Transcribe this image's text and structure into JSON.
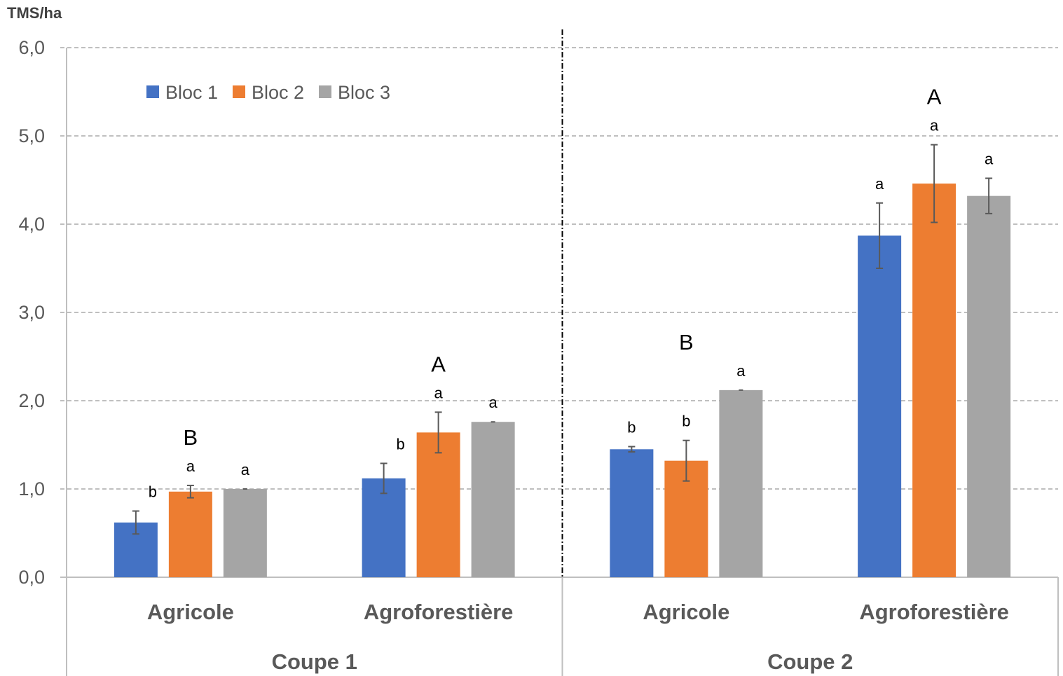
{
  "chart_data": {
    "type": "bar",
    "ylabel": "TMS/ha",
    "ylim": [
      0,
      6
    ],
    "yticks": [
      "0,0",
      "1,0",
      "2,0",
      "3,0",
      "4,0",
      "5,0",
      "6,0"
    ],
    "grid": true,
    "legend_position": "top-left",
    "groups": [
      {
        "label": "Coupe 1",
        "categories": [
          {
            "label": "Agricole",
            "letter": "B"
          },
          {
            "label": "Agroforestière",
            "letter": "A"
          }
        ]
      },
      {
        "label": "Coupe 2",
        "categories": [
          {
            "label": "Agricole",
            "letter": "B"
          },
          {
            "label": "Agroforestière",
            "letter": "A"
          }
        ]
      }
    ],
    "series": [
      {
        "name": "Bloc 1",
        "color": "#4472C4",
        "values": [
          0.62,
          1.12,
          1.45,
          3.87
        ],
        "errors": [
          0.13,
          0.17,
          0.03,
          0.37
        ],
        "letters": [
          "b",
          "b",
          "b",
          "a"
        ]
      },
      {
        "name": "Bloc 2",
        "color": "#ED7D31",
        "values": [
          0.97,
          1.64,
          1.32,
          4.46
        ],
        "errors": [
          0.07,
          0.23,
          0.23,
          0.44
        ],
        "letters": [
          "a",
          "a",
          "b",
          "a"
        ]
      },
      {
        "name": "Bloc 3",
        "color": "#A5A5A5",
        "values": [
          1.0,
          1.76,
          2.12,
          4.32
        ],
        "errors": [
          0.0,
          0.0,
          0.0,
          0.2
        ],
        "letters": [
          "a",
          "a",
          "a",
          "a"
        ]
      }
    ]
  }
}
